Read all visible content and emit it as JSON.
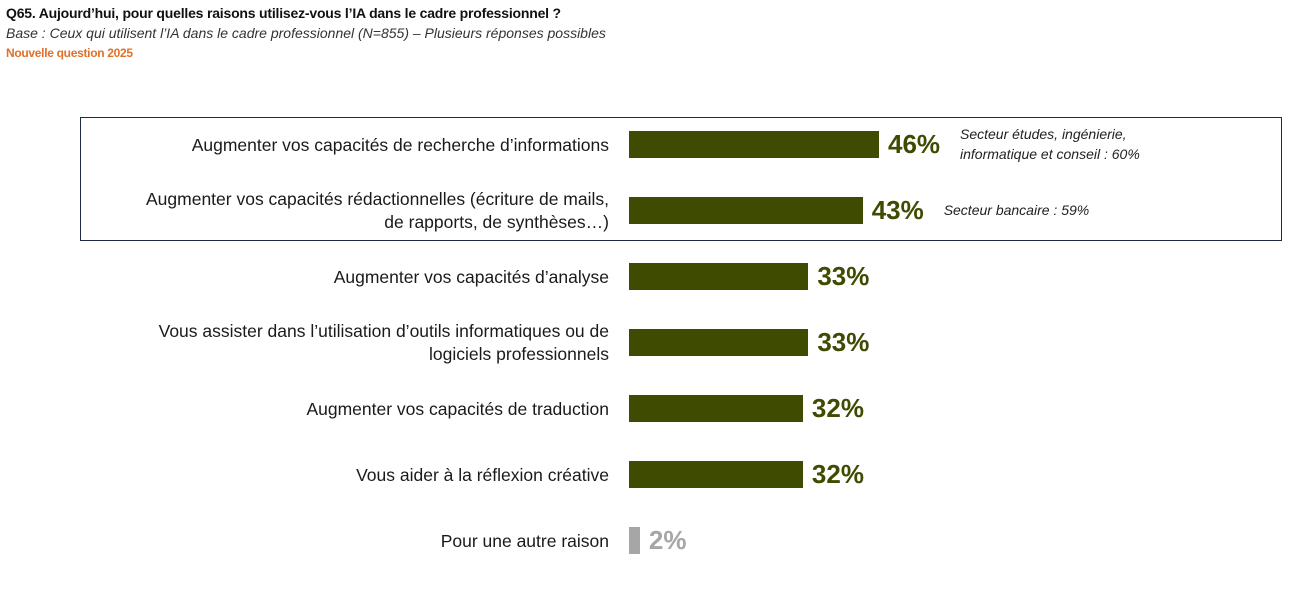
{
  "header": {
    "title": "Q65. Aujourd’hui, pour quelles raisons utilisez-vous l’IA dans le cadre professionnel ?",
    "base": "Base : Ceux qui utilisent l’IA dans le cadre professionnel (N=855) – Plusieurs réponses possibles",
    "new_tag": "Nouvelle question 2025"
  },
  "colors": {
    "bar": "#3f4b00",
    "muted": "#a6a6a6",
    "accent": "#e0702a"
  },
  "chart_data": {
    "type": "bar",
    "orientation": "horizontal",
    "unit": "%",
    "categories": [
      [
        "Augmenter vos capacités de recherche d’informations"
      ],
      [
        "Augmenter vos capacités rédactionnelles (écriture de mails,",
        "de rapports, de synthèses…)"
      ],
      [
        "Augmenter vos capacités d’analyse"
      ],
      [
        "Vous assister dans l’utilisation d’outils informatiques ou de",
        "logiciels professionnels"
      ],
      [
        "Augmenter vos capacités de traduction"
      ],
      [
        "Vous aider à la réflexion créative"
      ],
      [
        "Pour une autre raison"
      ]
    ],
    "values": [
      46,
      43,
      33,
      33,
      32,
      32,
      2
    ],
    "value_labels": [
      "46%",
      "43%",
      "33%",
      "33%",
      "32%",
      "32%",
      "2%"
    ],
    "annotations": [
      [
        "Secteur études, ingénierie,",
        "informatique et conseil : 60%"
      ],
      [
        "Secteur bancaire : 59%"
      ],
      [],
      [],
      [],
      [],
      []
    ],
    "highlighted_rows": [
      0,
      1
    ],
    "muted_rows": [
      6
    ]
  }
}
